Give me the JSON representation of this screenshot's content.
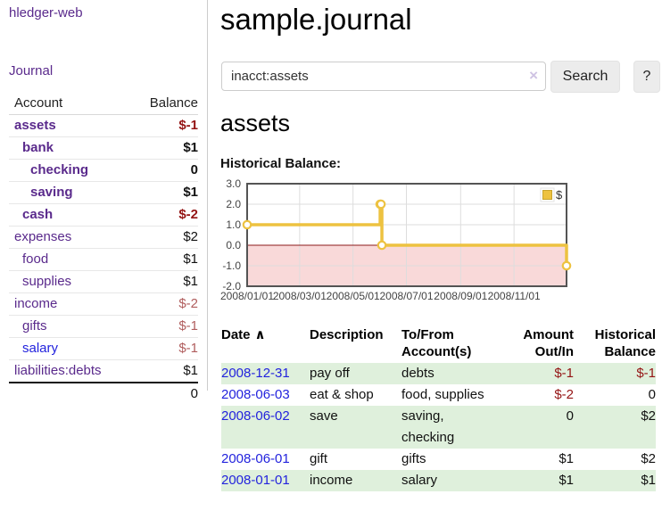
{
  "colors": {
    "purple_link": "#5a2a8c",
    "blue_link": "#2323dd",
    "neg_strong": "#941414",
    "neg_soft": "#b05d5d",
    "row_green": "#dff0dc",
    "chart_line": "#edc240",
    "chart_negative_region": "#f9d9d9",
    "chart_zero_line": "#8c1a1a",
    "chart_grid": "#dddddd",
    "chart_border": "#545454"
  },
  "brand": {
    "title": "hledger-web"
  },
  "nav": {
    "journal": "Journal"
  },
  "sidebar": {
    "header": {
      "account": "Account",
      "balance": "Balance"
    },
    "accounts": [
      {
        "label": "assets",
        "level": 1,
        "bold": true,
        "link": "visited",
        "balance": "$-1",
        "balance_tone": "neg-strong"
      },
      {
        "label": "bank",
        "level": 2,
        "bold": true,
        "link": "visited",
        "balance": "$1",
        "balance_tone": "pos"
      },
      {
        "label": "checking",
        "level": 3,
        "bold": true,
        "link": "visited",
        "balance": "0",
        "balance_tone": "pos"
      },
      {
        "label": "saving",
        "level": 3,
        "bold": true,
        "link": "visited",
        "balance": "$1",
        "balance_tone": "pos"
      },
      {
        "label": "cash",
        "level": 2,
        "bold": true,
        "link": "visited",
        "balance": "$-2",
        "balance_tone": "neg-strong"
      },
      {
        "label": "expenses",
        "level": 1,
        "bold": false,
        "link": "visited",
        "balance": "$2",
        "balance_tone": "pos"
      },
      {
        "label": "food",
        "level": 2,
        "bold": false,
        "link": "visited",
        "balance": "$1",
        "balance_tone": "pos"
      },
      {
        "label": "supplies",
        "level": 2,
        "bold": false,
        "link": "visited",
        "balance": "$1",
        "balance_tone": "pos"
      },
      {
        "label": "income",
        "level": 1,
        "bold": false,
        "link": "visited",
        "balance": "$-2",
        "balance_tone": "neg-soft"
      },
      {
        "label": "gifts",
        "level": 2,
        "bold": false,
        "link": "visited",
        "balance": "$-1",
        "balance_tone": "neg-soft"
      },
      {
        "label": "salary",
        "level": 2,
        "bold": false,
        "link": "unvisited",
        "balance": "$-1",
        "balance_tone": "neg-soft"
      },
      {
        "label": "liabilities:debts",
        "level": 1,
        "bold": false,
        "link": "visited",
        "balance": "$1",
        "balance_tone": "pos"
      }
    ],
    "total": "0"
  },
  "main": {
    "title": "sample.journal",
    "search": {
      "value": "inacct:assets",
      "clear": "×",
      "search_button": "Search",
      "help_button": "?"
    },
    "account_heading": "assets",
    "section_label": "Historical Balance:"
  },
  "chart_data": {
    "type": "line",
    "style": "step",
    "title": "Historical Balance",
    "x_range_days": [
      0,
      365
    ],
    "y_range": [
      -2,
      3
    ],
    "negative_region_shaded": true,
    "legend_position": "top-right",
    "grid": true,
    "y_ticks": [
      {
        "pos": 3,
        "label": "3.0"
      },
      {
        "pos": 2,
        "label": "2.0"
      },
      {
        "pos": 1,
        "label": "1.0"
      },
      {
        "pos": 0,
        "label": "0.0"
      },
      {
        "pos": -1,
        "label": "-1.0"
      },
      {
        "pos": -2,
        "label": "-2.0"
      }
    ],
    "x_ticks": [
      {
        "pos": 0,
        "label": "2008/01/01"
      },
      {
        "pos": 60,
        "label": "2008/03/01"
      },
      {
        "pos": 121,
        "label": "2008/05/01"
      },
      {
        "pos": 182,
        "label": "2008/07/01"
      },
      {
        "pos": 244,
        "label": "2008/09/01"
      },
      {
        "pos": 305,
        "label": "2008/11/01"
      }
    ],
    "series": [
      {
        "name": "$",
        "points": [
          {
            "date": "2008-01-01",
            "day": 0,
            "value": 1
          },
          {
            "date": "2008-06-01",
            "day": 152,
            "value": 2
          },
          {
            "date": "2008-06-02",
            "day": 153,
            "value": 2
          },
          {
            "date": "2008-06-03",
            "day": 154,
            "value": 0
          },
          {
            "date": "2008-12-31",
            "day": 365,
            "value": -1
          }
        ]
      }
    ]
  },
  "register": {
    "headers": {
      "date": "Date",
      "sort_indicator": "∧",
      "description": "Description",
      "account": "To/From\nAccount(s)",
      "amount": "Amount\nOut/In",
      "balance": "Historical\nBalance"
    },
    "rows": [
      {
        "date": "2008-12-31",
        "description": "pay off",
        "accounts": "debts",
        "amount": "$-1",
        "amount_tone": "neg",
        "balance": "$-1",
        "balance_tone": "neg",
        "shaded": true
      },
      {
        "date": "2008-06-03",
        "description": "eat & shop",
        "accounts": "food, supplies",
        "amount": "$-2",
        "amount_tone": "neg",
        "balance": "0",
        "balance_tone": "pos",
        "shaded": false
      },
      {
        "date": "2008-06-02",
        "description": "save",
        "accounts": "saving,\nchecking",
        "amount": "0",
        "amount_tone": "pos",
        "balance": "$2",
        "balance_tone": "pos",
        "shaded": true
      },
      {
        "date": "2008-06-01",
        "description": "gift",
        "accounts": "gifts",
        "amount": "$1",
        "amount_tone": "pos",
        "balance": "$2",
        "balance_tone": "pos",
        "shaded": false
      },
      {
        "date": "2008-01-01",
        "description": "income",
        "accounts": "salary",
        "amount": "$1",
        "amount_tone": "pos",
        "balance": "$1",
        "balance_tone": "pos",
        "shaded": true
      }
    ]
  }
}
